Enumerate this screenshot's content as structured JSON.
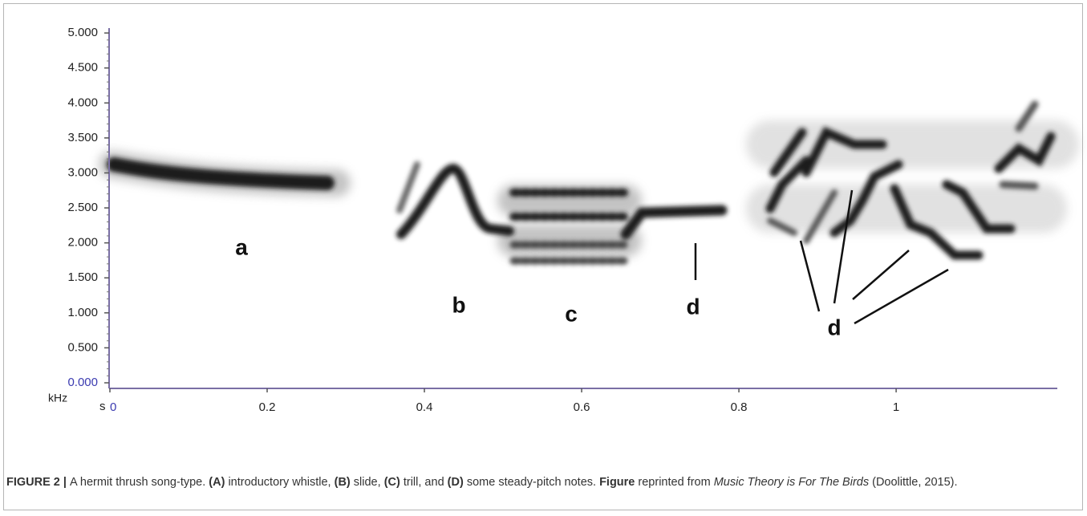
{
  "chart_data": {
    "type": "spectrogram",
    "y_label": "kHz",
    "x_label": "s",
    "ylim": [
      -0.08,
      5.07
    ],
    "xlim": [
      0,
      1.205
    ],
    "yticks": [
      {
        "value": 0,
        "label": "0.000"
      },
      {
        "value": 0.5,
        "label": "0.500"
      },
      {
        "value": 1,
        "label": "1.000"
      },
      {
        "value": 1.5,
        "label": "1.500"
      },
      {
        "value": 2,
        "label": "2.000"
      },
      {
        "value": 2.5,
        "label": "2.500"
      },
      {
        "value": 3,
        "label": "3.000"
      },
      {
        "value": 3.5,
        "label": "3.500"
      },
      {
        "value": 4,
        "label": "4.000"
      },
      {
        "value": 4.5,
        "label": "4.500"
      },
      {
        "value": 5,
        "label": "5.000"
      }
    ],
    "xticks": [
      0,
      0.2,
      0.4,
      0.6,
      0.8,
      1
    ],
    "origin_color": "#3a3ab0",
    "annotations": [
      "a",
      "b",
      "c",
      "d",
      "d"
    ]
  },
  "caption": [
    {
      "text": "FIGURE 2 | ",
      "style": "bold"
    },
    {
      "text": "A hermit thrush song-type. ",
      "style": "normal"
    },
    {
      "text": "(A)",
      "style": "bold"
    },
    {
      "text": " introductory whistle, ",
      "style": "normal"
    },
    {
      "text": "(B)",
      "style": "bold"
    },
    {
      "text": " slide, ",
      "style": "normal"
    },
    {
      "text": "(C)",
      "style": "bold"
    },
    {
      "text": " trill, and ",
      "style": "normal"
    },
    {
      "text": "(D)",
      "style": "bold"
    },
    {
      "text": " some steady-pitch notes. ",
      "style": "normal"
    },
    {
      "text": "Figure",
      "style": "bold"
    },
    {
      "text": " reprinted from ",
      "style": "normal"
    },
    {
      "text": "Music Theory is For The Birds",
      "style": "italic"
    },
    {
      "text": " (Doolittle, 2015).",
      "style": "normal"
    }
  ]
}
